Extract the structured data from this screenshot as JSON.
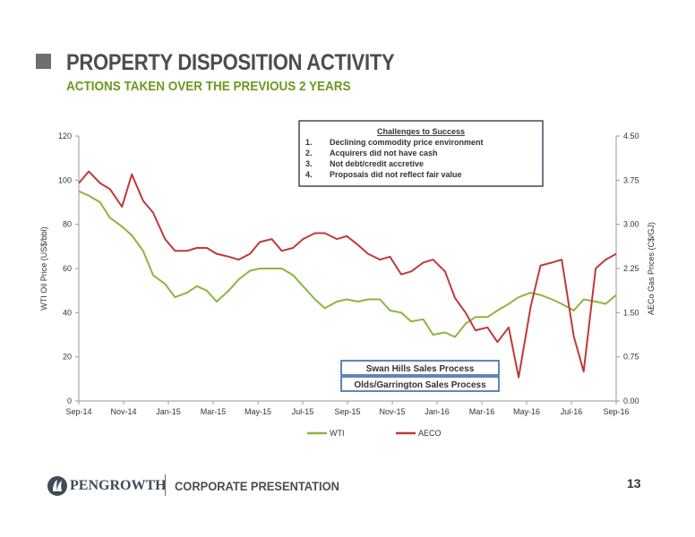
{
  "slide": {
    "title": "PROPERTY DISPOSITION ACTIVITY",
    "subtitle": "ACTIONS TAKEN OVER THE PREVIOUS 2 YEARS",
    "company": "PENGROWTH",
    "footer_label": "CORPORATE PRESENTATION",
    "page_number": "13"
  },
  "colors": {
    "wti": "#8cb63c",
    "aeco": "#c0393b",
    "subtitle": "#6a9a1f",
    "title": "#4d4d4f"
  },
  "chart_data": {
    "type": "line",
    "x_labels": [
      "Sep-14",
      "Nov-14",
      "Jan-15",
      "Mar-15",
      "May-15",
      "Jul-15",
      "Sep-15",
      "Nov-15",
      "Jan-16",
      "Mar-16",
      "May-16",
      "Jul-16",
      "Sep-16"
    ],
    "xlim": [
      "2014-09-01",
      "2016-09-30"
    ],
    "ylabel": "WTI Oil Price (US$/bbl)",
    "ylim": [
      0,
      120
    ],
    "y_ticks": [
      "0",
      "20",
      "40",
      "60",
      "80",
      "100",
      "120"
    ],
    "y2label": "AECo Gas Prices (C$/GJ)",
    "y2lim": [
      0,
      4.5
    ],
    "y2_ticks": [
      "0.00",
      "0.75",
      "1.50",
      "2.25",
      "3.00",
      "3.75",
      "4.50"
    ],
    "legend": [
      "WTI",
      "AECO"
    ],
    "legend_position": "bottom",
    "series": [
      {
        "name": "WTI",
        "axis": "left",
        "points": [
          [
            "2014-09-01",
            95
          ],
          [
            "2014-09-15",
            93
          ],
          [
            "2014-10-01",
            90
          ],
          [
            "2014-10-15",
            83
          ],
          [
            "2014-11-01",
            79
          ],
          [
            "2014-11-15",
            75
          ],
          [
            "2014-12-01",
            68
          ],
          [
            "2014-12-15",
            57
          ],
          [
            "2015-01-01",
            53
          ],
          [
            "2015-01-15",
            47
          ],
          [
            "2015-02-01",
            49
          ],
          [
            "2015-02-15",
            52
          ],
          [
            "2015-03-01",
            50
          ],
          [
            "2015-03-15",
            45
          ],
          [
            "2015-04-01",
            50
          ],
          [
            "2015-04-15",
            55
          ],
          [
            "2015-05-01",
            59
          ],
          [
            "2015-05-15",
            60
          ],
          [
            "2015-06-01",
            60
          ],
          [
            "2015-06-15",
            60
          ],
          [
            "2015-07-01",
            57
          ],
          [
            "2015-07-15",
            52
          ],
          [
            "2015-08-01",
            46
          ],
          [
            "2015-08-15",
            42
          ],
          [
            "2015-09-01",
            45
          ],
          [
            "2015-09-15",
            46
          ],
          [
            "2015-10-01",
            45
          ],
          [
            "2015-10-15",
            46
          ],
          [
            "2015-11-01",
            46
          ],
          [
            "2015-11-15",
            41
          ],
          [
            "2015-12-01",
            40
          ],
          [
            "2015-12-15",
            36
          ],
          [
            "2016-01-01",
            37
          ],
          [
            "2016-01-15",
            30
          ],
          [
            "2016-02-01",
            31
          ],
          [
            "2016-02-15",
            29
          ],
          [
            "2016-03-01",
            35
          ],
          [
            "2016-03-15",
            38
          ],
          [
            "2016-04-01",
            38
          ],
          [
            "2016-04-15",
            41
          ],
          [
            "2016-05-01",
            44
          ],
          [
            "2016-05-15",
            47
          ],
          [
            "2016-06-01",
            49
          ],
          [
            "2016-06-15",
            48
          ],
          [
            "2016-07-01",
            46
          ],
          [
            "2016-07-15",
            44
          ],
          [
            "2016-08-01",
            41
          ],
          [
            "2016-08-15",
            46
          ],
          [
            "2016-09-01",
            45
          ],
          [
            "2016-09-15",
            44
          ],
          [
            "2016-09-30",
            48
          ]
        ]
      },
      {
        "name": "AECO",
        "axis": "right",
        "points": [
          [
            "2014-09-01",
            3.7
          ],
          [
            "2014-09-15",
            3.9
          ],
          [
            "2014-10-01",
            3.7
          ],
          [
            "2014-10-15",
            3.6
          ],
          [
            "2014-11-01",
            3.3
          ],
          [
            "2014-11-15",
            3.85
          ],
          [
            "2014-12-01",
            3.4
          ],
          [
            "2014-12-15",
            3.2
          ],
          [
            "2015-01-01",
            2.75
          ],
          [
            "2015-01-15",
            2.55
          ],
          [
            "2015-02-01",
            2.55
          ],
          [
            "2015-02-15",
            2.6
          ],
          [
            "2015-03-01",
            2.6
          ],
          [
            "2015-03-15",
            2.5
          ],
          [
            "2015-04-01",
            2.45
          ],
          [
            "2015-04-15",
            2.4
          ],
          [
            "2015-05-01",
            2.5
          ],
          [
            "2015-05-15",
            2.7
          ],
          [
            "2015-06-01",
            2.75
          ],
          [
            "2015-06-15",
            2.55
          ],
          [
            "2015-07-01",
            2.6
          ],
          [
            "2015-07-15",
            2.75
          ],
          [
            "2015-08-01",
            2.85
          ],
          [
            "2015-08-15",
            2.85
          ],
          [
            "2015-09-01",
            2.75
          ],
          [
            "2015-09-15",
            2.8
          ],
          [
            "2015-10-01",
            2.65
          ],
          [
            "2015-10-15",
            2.5
          ],
          [
            "2015-11-01",
            2.4
          ],
          [
            "2015-11-15",
            2.45
          ],
          [
            "2015-12-01",
            2.15
          ],
          [
            "2015-12-15",
            2.2
          ],
          [
            "2016-01-01",
            2.35
          ],
          [
            "2016-01-15",
            2.4
          ],
          [
            "2016-02-01",
            2.2
          ],
          [
            "2016-02-15",
            1.75
          ],
          [
            "2016-03-01",
            1.5
          ],
          [
            "2016-03-15",
            1.2
          ],
          [
            "2016-04-01",
            1.25
          ],
          [
            "2016-04-15",
            1.0
          ],
          [
            "2016-05-01",
            1.25
          ],
          [
            "2016-05-15",
            0.4
          ],
          [
            "2016-06-01",
            1.6
          ],
          [
            "2016-06-15",
            2.3
          ],
          [
            "2016-07-01",
            2.35
          ],
          [
            "2016-07-15",
            2.4
          ],
          [
            "2016-08-01",
            1.1
          ],
          [
            "2016-08-15",
            0.5
          ],
          [
            "2016-09-01",
            2.25
          ],
          [
            "2016-09-15",
            2.4
          ],
          [
            "2016-09-30",
            2.5
          ]
        ]
      }
    ],
    "annotations": {
      "challenges_title": "Challenges to Success",
      "challenges": [
        {
          "num": "1.",
          "text": "Declining commodity price environment"
        },
        {
          "num": "2.",
          "text": "Acquirers did not have cash"
        },
        {
          "num": "3.",
          "text": "Not debt/credit accretive"
        },
        {
          "num": "4.",
          "text": "Proposals did not reflect fair value"
        }
      ],
      "process_boxes": [
        "Swan Hills Sales Process",
        "Olds/Garrington Sales Process"
      ]
    }
  }
}
